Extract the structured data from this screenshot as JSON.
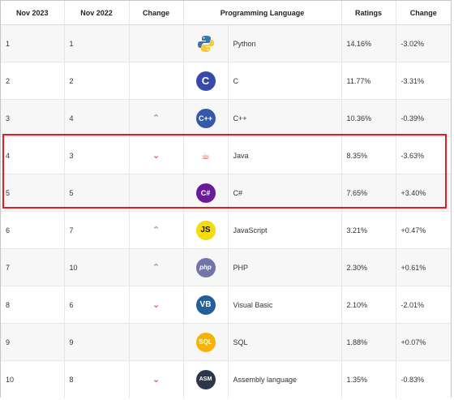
{
  "headers": [
    "Nov 2023",
    "Nov 2022",
    "Change",
    "Programming Language",
    "Ratings",
    "Change"
  ],
  "rows": [
    {
      "rank_2023": "1",
      "rank_2022": "1",
      "change": "",
      "icon": "python-icon",
      "icon_text": "",
      "language": "Python",
      "rating": "14.16%",
      "rating_change": "-3.02%"
    },
    {
      "rank_2023": "2",
      "rank_2022": "2",
      "change": "",
      "icon": "c-language-icon",
      "icon_text": "C",
      "language": "C",
      "rating": "11.77%",
      "rating_change": "-3.31%"
    },
    {
      "rank_2023": "3",
      "rank_2022": "4",
      "change": "up",
      "icon": "cpp-icon",
      "icon_text": "C++",
      "language": "C++",
      "rating": "10.36%",
      "rating_change": "-0.39%"
    },
    {
      "rank_2023": "4",
      "rank_2022": "3",
      "change": "down",
      "icon": "java-icon",
      "icon_text": "☕",
      "language": "Java",
      "rating": "8.35%",
      "rating_change": "-3.63%"
    },
    {
      "rank_2023": "5",
      "rank_2022": "5",
      "change": "",
      "icon": "csharp-icon",
      "icon_text": "C#",
      "language": "C#",
      "rating": "7.65%",
      "rating_change": "+3.40%"
    },
    {
      "rank_2023": "6",
      "rank_2022": "7",
      "change": "up",
      "icon": "javascript-icon",
      "icon_text": "JS",
      "language": "JavaScript",
      "rating": "3.21%",
      "rating_change": "+0.47%"
    },
    {
      "rank_2023": "7",
      "rank_2022": "10",
      "change": "up",
      "icon": "php-icon",
      "icon_text": "php",
      "language": "PHP",
      "rating": "2.30%",
      "rating_change": "+0.61%"
    },
    {
      "rank_2023": "8",
      "rank_2022": "6",
      "change": "down",
      "icon": "visual-basic-icon",
      "icon_text": "VB",
      "language": "Visual Basic",
      "rating": "2.10%",
      "rating_change": "-2.01%"
    },
    {
      "rank_2023": "9",
      "rank_2022": "9",
      "change": "",
      "icon": "sql-icon",
      "icon_text": "SQL",
      "language": "SQL",
      "rating": "1.88%",
      "rating_change": "+0.07%"
    },
    {
      "rank_2023": "10",
      "rank_2022": "8",
      "change": "down",
      "icon": "assembly-icon",
      "icon_text": "ASM",
      "language": "Assembly language",
      "rating": "1.35%",
      "rating_change": "-0.83%"
    }
  ],
  "highlight": {
    "rows": [
      "4",
      "5"
    ],
    "color": "#e21c25"
  },
  "colors": {
    "up": "#5cb85c",
    "down": "#d9534f",
    "stripe": "#f7f7f7"
  }
}
